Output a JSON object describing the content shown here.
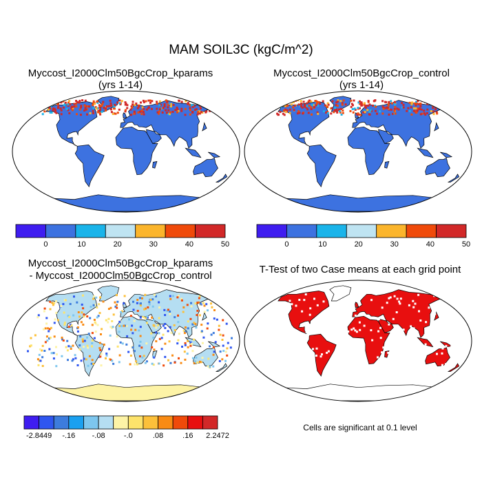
{
  "title": "MAM SOIL3C (kgC/m^2)",
  "panels": [
    {
      "title_line1": "Myccost_I2000Clm50BgcCrop_kparams",
      "title_line2": "(yrs 1-14)"
    },
    {
      "title_line1": "Myccost_I2000Clm50BgcCrop_control",
      "title_line2": "(yrs 1-14)"
    },
    {
      "title_line1": "Myccost_I2000Clm50BgcCrop_kparams",
      "title_line2": "- Myccost_I2000Clm50BgcCrop_control"
    },
    {
      "title_line1": "T-Test of two Case means at each grid point"
    }
  ],
  "colorbar_main": {
    "colors": [
      "#3f1df0",
      "#3d72e0",
      "#1ab4ea",
      "#bfe4f2",
      "#fbb52c",
      "#f04a0a",
      "#d22828"
    ],
    "labels": [
      "0",
      "10",
      "20",
      "30",
      "40",
      "50"
    ]
  },
  "colorbar_diff": {
    "colors": [
      "#3f1df0",
      "#2f56f0",
      "#3d7cdd",
      "#1aa0f0",
      "#7dc6ee",
      "#b5def2",
      "#fdf3a6",
      "#fde36b",
      "#fcc03a",
      "#f98b14",
      "#f04a0a",
      "#e80f0f",
      "#d22828"
    ],
    "labels": [
      "-2.8449",
      "-.16",
      "-.08",
      "-.0",
      ".08",
      ".16",
      "2.2472"
    ]
  },
  "map_colors": {
    "ocean": "#ffffff",
    "land_main": "#3d72e0",
    "land_diff": "#b5def2",
    "ttest_sig": "#e80f0f"
  },
  "footnote": "Cells are significant at 0.1 level"
}
